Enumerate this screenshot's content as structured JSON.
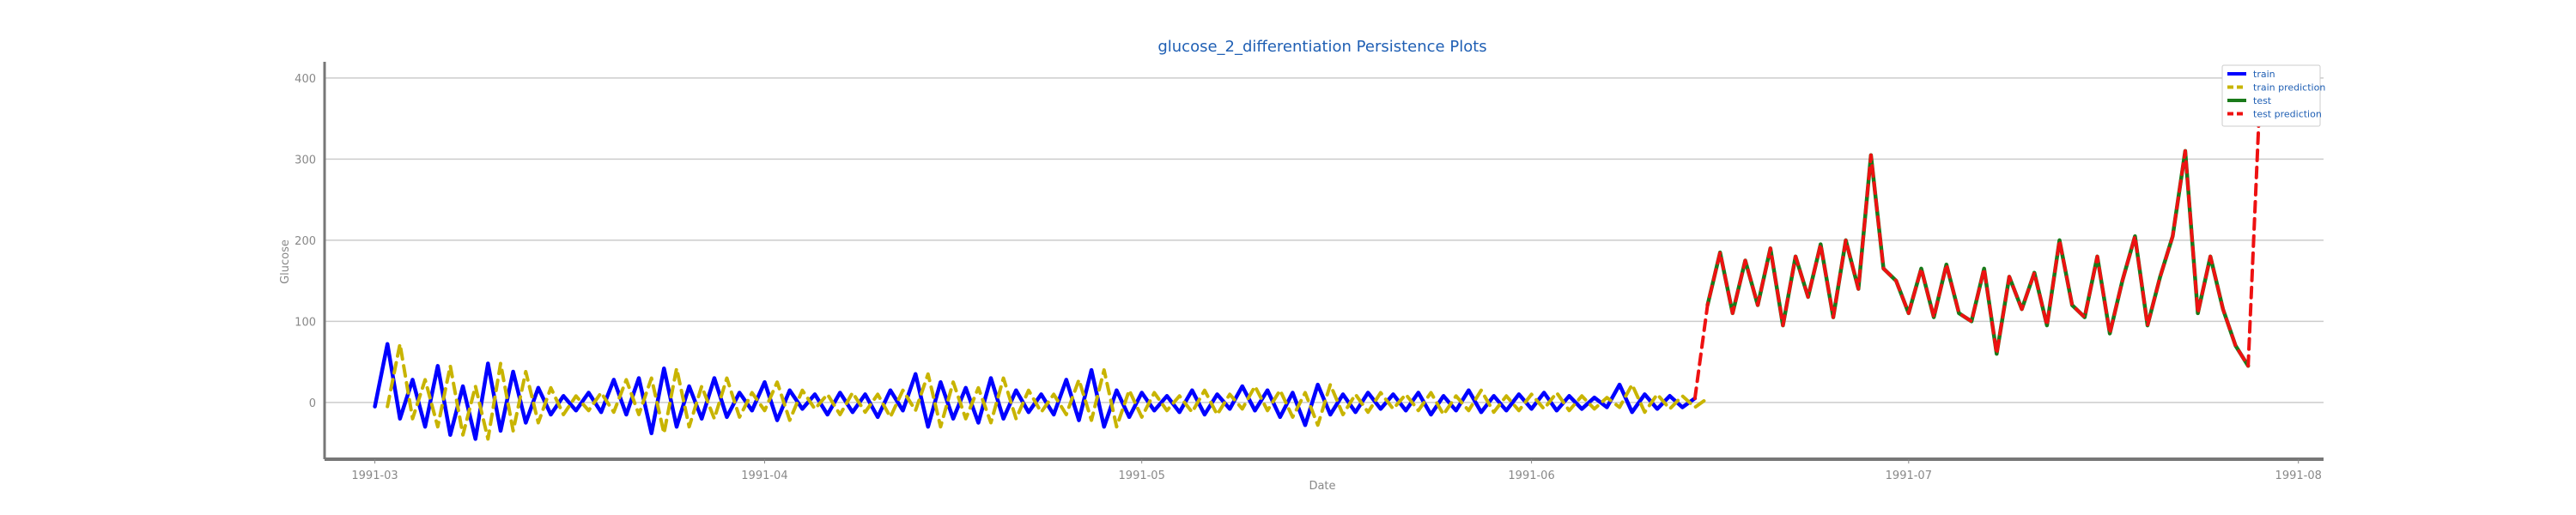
{
  "chart_data": {
    "type": "line",
    "title": "glucose_2_differentiation Persistence Plots",
    "xlabel": "Date",
    "ylabel": "Glucose",
    "xlim": [
      "1991-02-25",
      "1991-08-03"
    ],
    "ylim": [
      -70,
      420
    ],
    "x_ticks": [
      "1991-03",
      "1991-04",
      "1991-05",
      "1991-06",
      "1991-07",
      "1991-08"
    ],
    "y_ticks": [
      0,
      100,
      200,
      300,
      400
    ],
    "grid": "horizontal",
    "legend_position": "top-right",
    "series": [
      {
        "name": "train",
        "color": "#0000ff",
        "style": "solid",
        "x": [
          "1991-03-01",
          "1991-03-02",
          "1991-03-03",
          "1991-03-04",
          "1991-03-05",
          "1991-03-06",
          "1991-03-07",
          "1991-03-08",
          "1991-03-09",
          "1991-03-10",
          "1991-03-11",
          "1991-03-12",
          "1991-03-13",
          "1991-03-14",
          "1991-03-15",
          "1991-03-16",
          "1991-03-17",
          "1991-03-18",
          "1991-03-19",
          "1991-03-20",
          "1991-03-21",
          "1991-03-22",
          "1991-03-23",
          "1991-03-24",
          "1991-03-25",
          "1991-03-26",
          "1991-03-27",
          "1991-03-28",
          "1991-03-29",
          "1991-03-30",
          "1991-03-31",
          "1991-04-01",
          "1991-04-02",
          "1991-04-03",
          "1991-04-04",
          "1991-04-05",
          "1991-04-06",
          "1991-04-07",
          "1991-04-08",
          "1991-04-09",
          "1991-04-10",
          "1991-04-11",
          "1991-04-12",
          "1991-04-13",
          "1991-04-14",
          "1991-04-15",
          "1991-04-16",
          "1991-04-17",
          "1991-04-18",
          "1991-04-19",
          "1991-04-20",
          "1991-04-21",
          "1991-04-22",
          "1991-04-23",
          "1991-04-24",
          "1991-04-25",
          "1991-04-26",
          "1991-04-27",
          "1991-04-28",
          "1991-04-29",
          "1991-04-30",
          "1991-05-01",
          "1991-05-02",
          "1991-05-03",
          "1991-05-04",
          "1991-05-05",
          "1991-05-06",
          "1991-05-07",
          "1991-05-08",
          "1991-05-09",
          "1991-05-10",
          "1991-05-11",
          "1991-05-12",
          "1991-05-13",
          "1991-05-14",
          "1991-05-15",
          "1991-05-16",
          "1991-05-17",
          "1991-05-18",
          "1991-05-19",
          "1991-05-20",
          "1991-05-21",
          "1991-05-22",
          "1991-05-23",
          "1991-05-24",
          "1991-05-25",
          "1991-05-26",
          "1991-05-27",
          "1991-05-28",
          "1991-05-29",
          "1991-05-30",
          "1991-05-31",
          "1991-06-01",
          "1991-06-02",
          "1991-06-03",
          "1991-06-04",
          "1991-06-05",
          "1991-06-06",
          "1991-06-07",
          "1991-06-08",
          "1991-06-09",
          "1991-06-10",
          "1991-06-11",
          "1991-06-12",
          "1991-06-13",
          "1991-06-14"
        ],
        "y": [
          -5,
          72,
          -20,
          28,
          -30,
          45,
          -40,
          20,
          -45,
          48,
          -35,
          38,
          -25,
          18,
          -15,
          8,
          -10,
          12,
          -12,
          28,
          -15,
          30,
          -38,
          42,
          -30,
          20,
          -20,
          30,
          -18,
          12,
          -10,
          25,
          -22,
          15,
          -8,
          10,
          -15,
          12,
          -12,
          10,
          -18,
          15,
          -10,
          35,
          -30,
          25,
          -20,
          18,
          -25,
          30,
          -20,
          15,
          -12,
          10,
          -15,
          28,
          -22,
          40,
          -30,
          15,
          -18,
          12,
          -10,
          8,
          -12,
          15,
          -15,
          10,
          -8,
          20,
          -10,
          15,
          -18,
          12,
          -28,
          22,
          -15,
          10,
          -12,
          12,
          -8,
          10,
          -10,
          12,
          -15,
          8,
          -10,
          15,
          -12,
          8,
          -10,
          10,
          -8,
          12,
          -10,
          8,
          -8,
          6,
          -6,
          22,
          -12,
          10,
          -8,
          8,
          -6,
          5
        ]
      },
      {
        "name": "train prediction",
        "color": "#c8b400",
        "style": "dashed",
        "x": [
          "1991-03-02",
          "1991-03-03",
          "1991-03-04",
          "1991-03-05",
          "1991-03-06",
          "1991-03-07",
          "1991-03-08",
          "1991-03-09",
          "1991-03-10",
          "1991-03-11",
          "1991-03-12",
          "1991-03-13",
          "1991-03-14",
          "1991-03-15",
          "1991-03-16",
          "1991-03-17",
          "1991-03-18",
          "1991-03-19",
          "1991-03-20",
          "1991-03-21",
          "1991-03-22",
          "1991-03-23",
          "1991-03-24",
          "1991-03-25",
          "1991-03-26",
          "1991-03-27",
          "1991-03-28",
          "1991-03-29",
          "1991-03-30",
          "1991-03-31",
          "1991-04-01",
          "1991-04-02",
          "1991-04-03",
          "1991-04-04",
          "1991-04-05",
          "1991-04-06",
          "1991-04-07",
          "1991-04-08",
          "1991-04-09",
          "1991-04-10",
          "1991-04-11",
          "1991-04-12",
          "1991-04-13",
          "1991-04-14",
          "1991-04-15",
          "1991-04-16",
          "1991-04-17",
          "1991-04-18",
          "1991-04-19",
          "1991-04-20",
          "1991-04-21",
          "1991-04-22",
          "1991-04-23",
          "1991-04-24",
          "1991-04-25",
          "1991-04-26",
          "1991-04-27",
          "1991-04-28",
          "1991-04-29",
          "1991-04-30",
          "1991-05-01",
          "1991-05-02",
          "1991-05-03",
          "1991-05-04",
          "1991-05-05",
          "1991-05-06",
          "1991-05-07",
          "1991-05-08",
          "1991-05-09",
          "1991-05-10",
          "1991-05-11",
          "1991-05-12",
          "1991-05-13",
          "1991-05-14",
          "1991-05-15",
          "1991-05-16",
          "1991-05-17",
          "1991-05-18",
          "1991-05-19",
          "1991-05-20",
          "1991-05-21",
          "1991-05-22",
          "1991-05-23",
          "1991-05-24",
          "1991-05-25",
          "1991-05-26",
          "1991-05-27",
          "1991-05-28",
          "1991-05-29",
          "1991-05-30",
          "1991-05-31",
          "1991-06-01",
          "1991-06-02",
          "1991-06-03",
          "1991-06-04",
          "1991-06-05",
          "1991-06-06",
          "1991-06-07",
          "1991-06-08",
          "1991-06-09",
          "1991-06-10",
          "1991-06-11",
          "1991-06-12",
          "1991-06-13",
          "1991-06-14",
          "1991-06-15"
        ],
        "y": [
          -5,
          72,
          -20,
          28,
          -30,
          45,
          -40,
          20,
          -45,
          48,
          -35,
          38,
          -25,
          18,
          -15,
          8,
          -10,
          12,
          -12,
          28,
          -15,
          30,
          -38,
          42,
          -30,
          20,
          -20,
          30,
          -18,
          12,
          -10,
          25,
          -22,
          15,
          -8,
          10,
          -15,
          12,
          -12,
          10,
          -18,
          15,
          -10,
          35,
          -30,
          25,
          -20,
          18,
          -25,
          30,
          -20,
          15,
          -12,
          10,
          -15,
          28,
          -22,
          40,
          -30,
          15,
          -18,
          12,
          -10,
          8,
          -12,
          15,
          -15,
          10,
          -8,
          20,
          -10,
          15,
          -18,
          12,
          -28,
          22,
          -15,
          10,
          -12,
          12,
          -8,
          10,
          -10,
          12,
          -15,
          8,
          -10,
          15,
          -12,
          8,
          -10,
          10,
          -8,
          12,
          -10,
          8,
          -8,
          6,
          -6,
          22,
          -12,
          10,
          -8,
          8,
          -6,
          5
        ]
      },
      {
        "name": "test",
        "color": "#1a7a1a",
        "style": "solid",
        "x": [
          "1991-06-15",
          "1991-06-16",
          "1991-06-17",
          "1991-06-18",
          "1991-06-19",
          "1991-06-20",
          "1991-06-21",
          "1991-06-22",
          "1991-06-23",
          "1991-06-24",
          "1991-06-25",
          "1991-06-26",
          "1991-06-27",
          "1991-06-28",
          "1991-06-29",
          "1991-06-30",
          "1991-07-01",
          "1991-07-02",
          "1991-07-03",
          "1991-07-04",
          "1991-07-05",
          "1991-07-06",
          "1991-07-07",
          "1991-07-08",
          "1991-07-09",
          "1991-07-10",
          "1991-07-11",
          "1991-07-12",
          "1991-07-13",
          "1991-07-14",
          "1991-07-15",
          "1991-07-16",
          "1991-07-17",
          "1991-07-18",
          "1991-07-19",
          "1991-07-20",
          "1991-07-21",
          "1991-07-22",
          "1991-07-23",
          "1991-07-24",
          "1991-07-25",
          "1991-07-26",
          "1991-07-27",
          "1991-07-28"
        ],
        "y": [
          120,
          185,
          110,
          175,
          120,
          190,
          95,
          180,
          130,
          195,
          105,
          200,
          140,
          305,
          165,
          150,
          110,
          165,
          105,
          170,
          110,
          100,
          165,
          60,
          155,
          115,
          160,
          95,
          200,
          120,
          105,
          180,
          85,
          150,
          205,
          95,
          155,
          205,
          310,
          110,
          180,
          115,
          70,
          45
        ]
      },
      {
        "name": "test prediction",
        "color": "#ee1111",
        "style": "dashed",
        "x": [
          "1991-06-14",
          "1991-06-15",
          "1991-06-16",
          "1991-06-17",
          "1991-06-18",
          "1991-06-19",
          "1991-06-20",
          "1991-06-21",
          "1991-06-22",
          "1991-06-23",
          "1991-06-24",
          "1991-06-25",
          "1991-06-26",
          "1991-06-27",
          "1991-06-28",
          "1991-06-29",
          "1991-06-30",
          "1991-07-01",
          "1991-07-02",
          "1991-07-03",
          "1991-07-04",
          "1991-07-05",
          "1991-07-06",
          "1991-07-07",
          "1991-07-08",
          "1991-07-09",
          "1991-07-10",
          "1991-07-11",
          "1991-07-12",
          "1991-07-13",
          "1991-07-14",
          "1991-07-15",
          "1991-07-16",
          "1991-07-17",
          "1991-07-18",
          "1991-07-19",
          "1991-07-20",
          "1991-07-21",
          "1991-07-22",
          "1991-07-23",
          "1991-07-24",
          "1991-07-25",
          "1991-07-26",
          "1991-07-27",
          "1991-07-28",
          "1991-07-29"
        ],
        "y": [
          5,
          120,
          185,
          110,
          175,
          120,
          190,
          95,
          180,
          130,
          195,
          105,
          200,
          140,
          305,
          165,
          150,
          110,
          165,
          105,
          170,
          110,
          100,
          165,
          60,
          155,
          115,
          160,
          95,
          200,
          120,
          105,
          180,
          85,
          150,
          205,
          95,
          155,
          205,
          310,
          110,
          180,
          115,
          70,
          45,
          400
        ]
      }
    ]
  }
}
